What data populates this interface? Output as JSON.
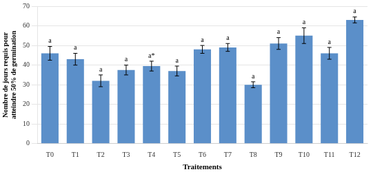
{
  "chart_data": {
    "type": "bar",
    "categories": [
      "T0",
      "T1",
      "T2",
      "T3",
      "T4",
      "T5",
      "T6",
      "T7",
      "T8",
      "T9",
      "T10",
      "T11",
      "T12"
    ],
    "values": [
      46,
      43,
      32,
      37.5,
      39.5,
      37,
      48,
      49,
      30,
      51,
      55,
      46,
      63
    ],
    "errors": [
      3.5,
      3,
      3,
      2.5,
      2.5,
      2.5,
      2,
      2,
      1.5,
      3,
      4,
      3,
      1.5
    ],
    "annotations": [
      "a",
      "a",
      "a",
      "a",
      "a*",
      "a",
      "a",
      "a",
      "a",
      "a",
      "a",
      "a",
      "a"
    ],
    "color": "#5b8fc9",
    "xlabel": "Traitements",
    "ylabel": "Nombre de jours requis pour\natteindre 50% de germination",
    "ylim": [
      0,
      70
    ],
    "yticks": [
      0,
      10,
      20,
      30,
      40,
      50,
      60,
      70
    ],
    "grid": true
  }
}
